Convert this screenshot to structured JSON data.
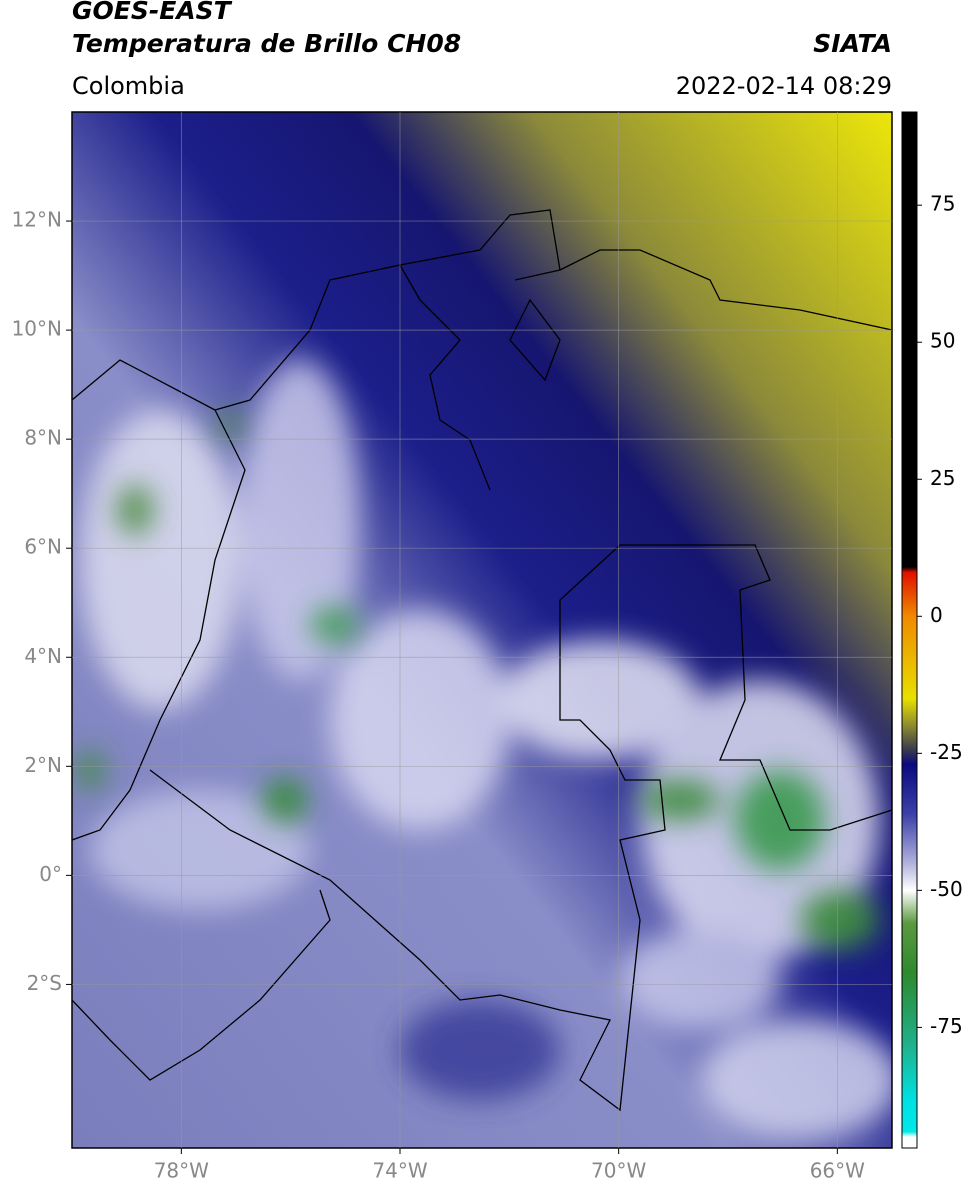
{
  "header": {
    "title": "GOES-EAST",
    "subtitle": "Temperatura de Brillo CH08",
    "source": "SIATA",
    "region": "Colombia",
    "datetime": "2022-02-14 08:29"
  },
  "map": {
    "xlim": [
      -80,
      -65
    ],
    "ylim": [
      -5,
      14
    ],
    "xticks": [
      {
        "value": -78,
        "label": "78°W"
      },
      {
        "value": -74,
        "label": "74°W"
      },
      {
        "value": -70,
        "label": "70°W"
      },
      {
        "value": -66,
        "label": "66°W"
      }
    ],
    "yticks": [
      {
        "value": -2,
        "label": "2°S"
      },
      {
        "value": 0,
        "label": "0°"
      },
      {
        "value": 2,
        "label": "2°N"
      },
      {
        "value": 4,
        "label": "4°N"
      },
      {
        "value": 6,
        "label": "6°N"
      },
      {
        "value": 8,
        "label": "8°N"
      },
      {
        "value": 10,
        "label": "10°N"
      },
      {
        "value": 12,
        "label": "12°N"
      }
    ],
    "grid": true,
    "grid_color": "#9a9a9a"
  },
  "colorbar": {
    "lim": [
      -97,
      92
    ],
    "ticks": [
      75,
      50,
      25,
      0,
      -25,
      -50,
      -75
    ],
    "stops": [
      {
        "value": 92,
        "color": "#000000"
      },
      {
        "value": 9,
        "color": "#000000"
      },
      {
        "value": 8,
        "color": "#e01000"
      },
      {
        "value": 0,
        "color": "#f08a00"
      },
      {
        "value": -15,
        "color": "#e8e000"
      },
      {
        "value": -20,
        "color": "#8a8a30"
      },
      {
        "value": -24,
        "color": "#404048"
      },
      {
        "value": -27,
        "color": "#0a0a80"
      },
      {
        "value": -36,
        "color": "#3a40a8"
      },
      {
        "value": -45,
        "color": "#b0b2dc"
      },
      {
        "value": -50,
        "color": "#ffffff"
      },
      {
        "value": -56,
        "color": "#5a9a40"
      },
      {
        "value": -65,
        "color": "#2e8a2e"
      },
      {
        "value": -78,
        "color": "#20b08a"
      },
      {
        "value": -88,
        "color": "#00e0e0"
      },
      {
        "value": -94,
        "color": "#00e8e8"
      },
      {
        "value": -95,
        "color": "#ffffff"
      },
      {
        "value": -97,
        "color": "#ffffff"
      }
    ]
  }
}
